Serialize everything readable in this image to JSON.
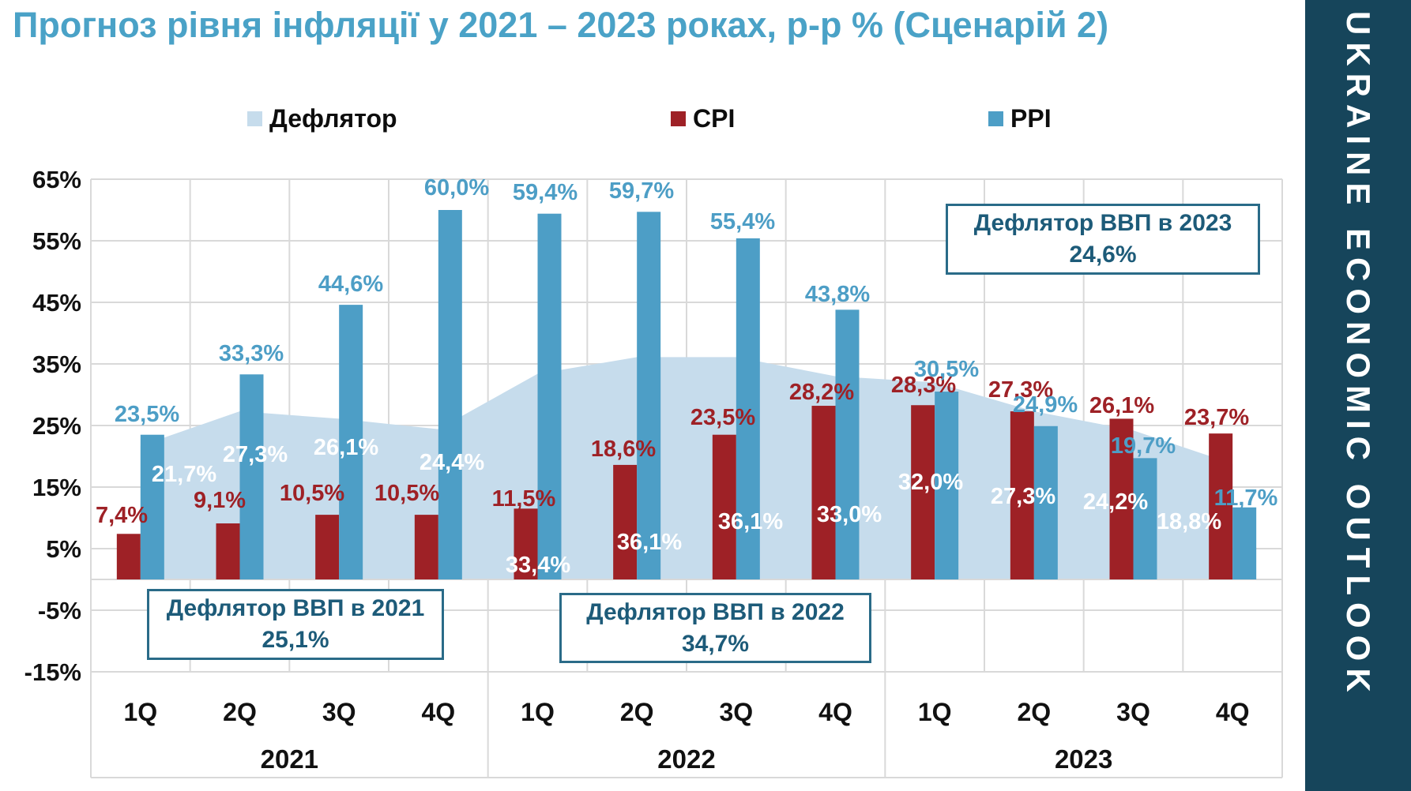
{
  "title": "Прогноз рівня інфляції у 2021 – 2023 роках, р-р % (Сценарій 2)",
  "sidebar": {
    "text": "UKRAINE ECONOMIC OUTLOOK",
    "bg": "#16455b"
  },
  "legend": {
    "items": [
      {
        "label": "Дефлятор",
        "color": "#c6dcec"
      },
      {
        "label": "CPI",
        "color": "#9e2126"
      },
      {
        "label": "PPI",
        "color": "#4d9ec6"
      }
    ]
  },
  "annotations": [
    {
      "line1": "Дефлятор ВВП в 2021",
      "line2": "25,1%"
    },
    {
      "line1": "Дефлятор ВВП в 2022",
      "line2": "34,7%"
    },
    {
      "line1": "Дефлятор ВВП в 2023",
      "line2": "24,6%"
    }
  ],
  "colors": {
    "title": "#4aa2c7",
    "grid": "#d9d9d9",
    "axis_text": "#111111",
    "annotation_text": "#1d5b79",
    "annotation_border": "#2a6b88",
    "deflator": "#c6dcec",
    "cpi": "#9e2126",
    "ppi": "#4d9ec6",
    "deflator_label": "#ffffff"
  },
  "chart_data": {
    "type": "combo: area + grouped bars",
    "categories": [
      "1Q",
      "2Q",
      "3Q",
      "4Q",
      "1Q",
      "2Q",
      "3Q",
      "4Q",
      "1Q",
      "2Q",
      "3Q",
      "4Q"
    ],
    "year_groups": [
      "2021",
      "2022",
      "2023"
    ],
    "y_axis": {
      "ticks": [
        "65%",
        "55%",
        "45%",
        "35%",
        "25%",
        "15%",
        "5%",
        "-5%",
        "-15%"
      ],
      "min": -15,
      "max": 65,
      "grid_step": 10,
      "grid": true
    },
    "legend_position": "top",
    "series": [
      {
        "name": "Дефлятор",
        "type": "area",
        "color": "#c6dcec",
        "label_color": "#ffffff",
        "values": [
          21.7,
          27.3,
          26.1,
          24.4,
          33.4,
          36.1,
          36.1,
          33.0,
          32.0,
          27.3,
          24.2,
          18.8
        ],
        "labels": [
          "21,7%",
          "27,3%",
          "26,1%",
          "24,4%",
          "33,4%",
          "36,1%",
          "36,1%",
          "33,0%",
          "32,0%",
          "27,3%",
          "24,2%",
          "18,8%"
        ]
      },
      {
        "name": "CPI",
        "type": "bar",
        "color": "#9e2126",
        "label_color": "#9e2126",
        "values": [
          7.4,
          9.1,
          10.5,
          10.5,
          11.5,
          18.6,
          23.5,
          28.2,
          28.3,
          27.3,
          26.1,
          23.7
        ],
        "labels": [
          "7,4%",
          "9,1%",
          "10,5%",
          "10,5%",
          "11,5%",
          "18,6%",
          "23,5%",
          "28,2%",
          "28,3%",
          "27,3%",
          "26,1%",
          "23,7%"
        ]
      },
      {
        "name": "PPI",
        "type": "bar",
        "color": "#4d9ec6",
        "label_color": "#4d9ec6",
        "values": [
          23.5,
          33.3,
          44.6,
          60.0,
          59.4,
          59.7,
          55.4,
          43.8,
          30.5,
          24.9,
          19.7,
          11.7
        ],
        "labels": [
          "23,5%",
          "33,3%",
          "44,6%",
          "60,0%",
          "59,4%",
          "59,7%",
          "55,4%",
          "43,8%",
          "30,5%",
          "24,9%",
          "19,7%",
          "11,7%"
        ]
      }
    ],
    "annotations": [
      "Дефлятор ВВП в 2021 25,1%",
      "Дефлятор ВВП в 2022 34,7%",
      "Дефлятор ВВП в 2023 24,6%"
    ]
  }
}
